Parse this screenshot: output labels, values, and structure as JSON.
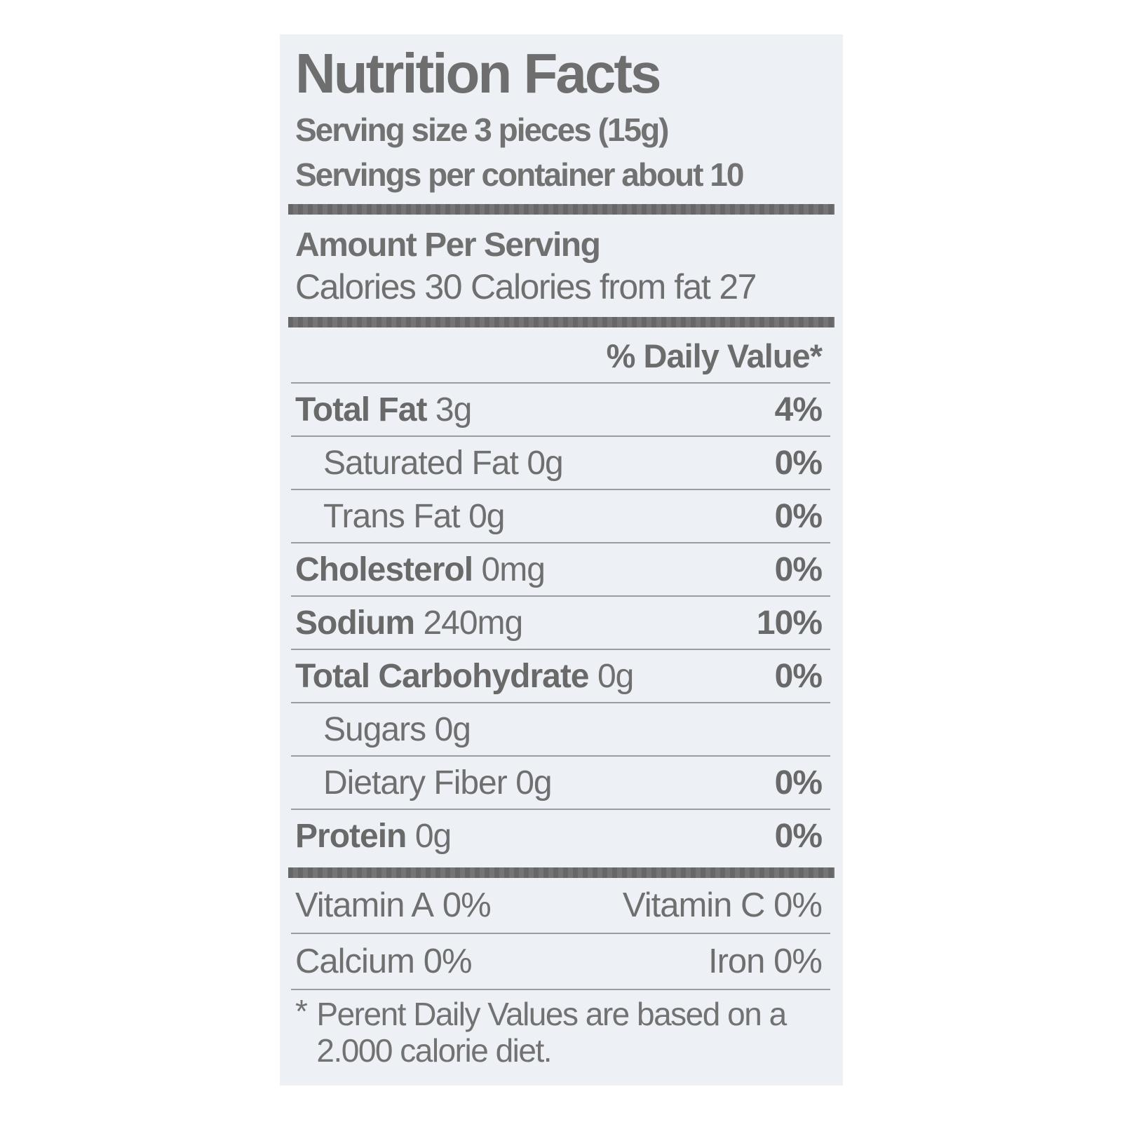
{
  "colors": {
    "label_background": "#edf1f6",
    "ink": "#6f6f6f"
  },
  "label": {
    "title": "Nutrition Facts",
    "serving": {
      "size_line": "Serving size 3 pieces (15g)",
      "per_container_line": "Servings per container about 10"
    },
    "amount_per_serving": "Amount Per Serving",
    "calories": {
      "label": "Calories",
      "value": "30",
      "from_fat_label": "Calories from fat",
      "from_fat_value": "27"
    },
    "daily_value_header": "% Daily Value*",
    "nutrient_rows": [
      {
        "label": "Total Fat",
        "amount": "3g",
        "daily_value": "4%"
      },
      {
        "label": "Saturated Fat",
        "amount": "0g",
        "daily_value": "0%"
      },
      {
        "label": "Trans Fat",
        "amount": "0g",
        "daily_value": "0%"
      },
      {
        "label": "Cholesterol",
        "amount": "0mg",
        "daily_value": "0%"
      },
      {
        "label": "Sodium",
        "amount": "240mg",
        "daily_value": "10%"
      },
      {
        "label": "Total Carbohydrate",
        "amount": "0g",
        "daily_value": "0%"
      },
      {
        "label": "Sugars",
        "amount": "0g",
        "daily_value": ""
      },
      {
        "label": "Dietary Fiber",
        "amount": "0g",
        "daily_value": "0%"
      },
      {
        "label": "Protein",
        "amount": "0g",
        "daily_value": "0%"
      }
    ],
    "micronutrients": [
      {
        "left_name": "Vitamin A",
        "left_value": "0%",
        "right_name": "Vitamin C",
        "right_value": "0%"
      },
      {
        "left_name": "Calcium",
        "left_value": "0%",
        "right_name": "Iron",
        "right_value": "0%"
      }
    ],
    "footnote": {
      "marker": "*",
      "line1": "Perent Daily Values are based on a",
      "line2": "2.000 calorie diet."
    }
  }
}
